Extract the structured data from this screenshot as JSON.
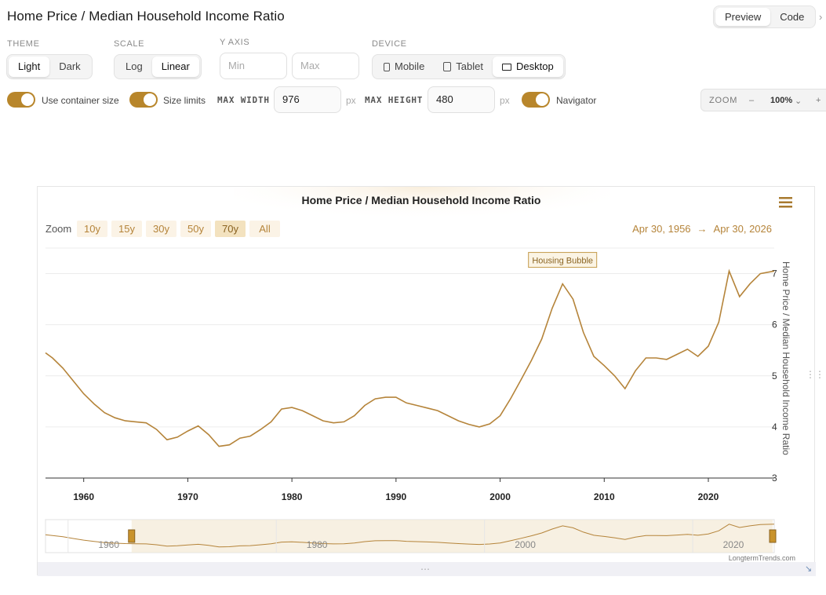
{
  "header": {
    "title": "Home Price / Median Household Income Ratio",
    "preview_label": "Preview",
    "code_label": "Code"
  },
  "controls": {
    "theme_label": "THEME",
    "theme_light": "Light",
    "theme_dark": "Dark",
    "scale_label": "SCALE",
    "scale_log": "Log",
    "scale_linear": "Linear",
    "yaxis_label": "Y AXIS",
    "min_placeholder": "Min",
    "max_placeholder": "Max",
    "device_label": "DEVICE",
    "device_mobile": "Mobile",
    "device_tablet": "Tablet",
    "device_desktop": "Desktop",
    "use_container": "Use container size",
    "size_limits": "Size limits",
    "max_width_label": "MAX WIDTH",
    "max_width_value": "976",
    "px": "px",
    "max_height_label": "MAX HEIGHT",
    "max_height_value": "480",
    "navigator": "Navigator",
    "zoom_label": "ZOOM",
    "zoom_minus": "–",
    "zoom_value": "100%",
    "zoom_plus": "+"
  },
  "chart_data": {
    "type": "line",
    "title": "Home Price / Median Household Income Ratio",
    "ylabel": "Home Price / Median Household Income Ratio",
    "xlabel": "",
    "ylim": [
      3,
      7.5
    ],
    "yticks": [
      3,
      4,
      5,
      6,
      7
    ],
    "xticks": [
      1960,
      1970,
      1980,
      1990,
      2000,
      2010,
      2020
    ],
    "xlim": [
      1956.33,
      2026.33
    ],
    "zoom_label": "Zoom",
    "zoom_buttons": [
      "10y",
      "15y",
      "30y",
      "50y",
      "70y",
      "All"
    ],
    "zoom_selected": "70y",
    "range_start": "Apr 30, 1956",
    "range_arrow": "→",
    "range_end": "Apr 30, 2026",
    "annotation": {
      "text": "Housing Bubble",
      "x": 2006,
      "y": 6.8
    },
    "navigator_ticks": [
      1960,
      1980,
      2000,
      2020
    ],
    "credit": "LongtermTrends.com",
    "color": "#b5843a",
    "x": [
      1956.33,
      1957,
      1958,
      1959,
      1960,
      1961,
      1962,
      1963,
      1964,
      1965,
      1966,
      1967,
      1968,
      1969,
      1970,
      1971,
      1972,
      1973,
      1974,
      1975,
      1976,
      1977,
      1978,
      1979,
      1980,
      1981,
      1982,
      1983,
      1984,
      1985,
      1986,
      1987,
      1988,
      1989,
      1990,
      1991,
      1992,
      1993,
      1994,
      1995,
      1996,
      1997,
      1998,
      1999,
      2000,
      2001,
      2002,
      2003,
      2004,
      2005,
      2006,
      2007,
      2008,
      2009,
      2010,
      2011,
      2012,
      2013,
      2014,
      2015,
      2016,
      2017,
      2018,
      2019,
      2020,
      2021,
      2022,
      2023,
      2024,
      2025,
      2026.33
    ],
    "y": [
      5.45,
      5.35,
      5.15,
      4.9,
      4.65,
      4.45,
      4.28,
      4.18,
      4.12,
      4.1,
      4.08,
      3.95,
      3.75,
      3.8,
      3.92,
      4.02,
      3.85,
      3.62,
      3.65,
      3.78,
      3.82,
      3.95,
      4.1,
      4.35,
      4.38,
      4.32,
      4.22,
      4.12,
      4.08,
      4.1,
      4.22,
      4.42,
      4.55,
      4.58,
      4.58,
      4.47,
      4.42,
      4.37,
      4.32,
      4.22,
      4.12,
      4.05,
      4.0,
      4.06,
      4.22,
      4.55,
      4.92,
      5.3,
      5.72,
      6.32,
      6.8,
      6.5,
      5.85,
      5.38,
      5.2,
      5.0,
      4.75,
      5.1,
      5.35,
      5.35,
      5.32,
      5.42,
      5.52,
      5.38,
      5.58,
      6.05,
      7.05,
      6.55,
      6.8,
      7.0,
      7.05
    ]
  }
}
